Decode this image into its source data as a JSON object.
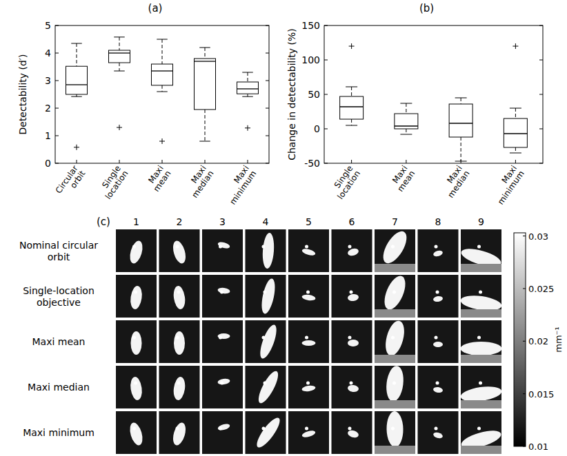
{
  "chart_data": [
    {
      "type": "box",
      "title": "(a)",
      "y_label": "Detectability (d′)",
      "categories": [
        "Circular orbit",
        "Single location",
        "Maxi mean",
        "Maxi median",
        "Maxi minimum"
      ],
      "whisker_low": [
        2.42,
        3.35,
        2.6,
        0.8,
        2.42
      ],
      "q1": [
        2.5,
        3.65,
        2.83,
        1.95,
        2.52
      ],
      "median": [
        2.85,
        4.0,
        3.35,
        3.7,
        2.7
      ],
      "q3": [
        3.52,
        4.1,
        3.6,
        3.8,
        2.95
      ],
      "whisker_high": [
        4.35,
        4.58,
        4.5,
        4.2,
        3.3
      ],
      "outliers": [
        [
          0.58
        ],
        [
          1.3
        ],
        [
          0.8
        ],
        [],
        [
          1.28
        ]
      ],
      "color": "#000000",
      "ylim": [
        0,
        5
      ],
      "yticks": [
        0,
        1,
        2,
        3,
        4,
        5
      ]
    },
    {
      "type": "box",
      "title": "(b)",
      "y_label": "Change in detectability (%)",
      "categories": [
        "Single location",
        "Maxi mean",
        "Maxi median",
        "Maxi minimum"
      ],
      "whisker_low": [
        5,
        -8,
        -47,
        -35
      ],
      "q1": [
        14,
        0,
        -12,
        -27
      ],
      "median": [
        32,
        4,
        8,
        -7
      ],
      "q3": [
        47,
        22,
        36,
        15
      ],
      "whisker_high": [
        61,
        37,
        45,
        30
      ],
      "outliers": [
        [
          120
        ],
        [],
        [],
        [
          120
        ]
      ],
      "color": "#000000",
      "ylim": [
        -50,
        150
      ],
      "yticks": [
        -50,
        0,
        50,
        100,
        150
      ]
    },
    {
      "type": "image_grid",
      "title": "(c)",
      "rows": [
        "Nominal circular orbit",
        "Single-location objective",
        "Maxi mean",
        "Maxi median",
        "Maxi minimum"
      ],
      "columns": [
        1,
        2,
        3,
        4,
        5,
        6,
        7,
        8,
        9
      ],
      "colorbar_lim": [
        0.01,
        0.0303
      ],
      "colorbar_ticks": [
        0.01,
        0.015,
        0.02,
        0.025,
        0.03
      ],
      "colorbar_label": "mm⁻¹"
    }
  ]
}
